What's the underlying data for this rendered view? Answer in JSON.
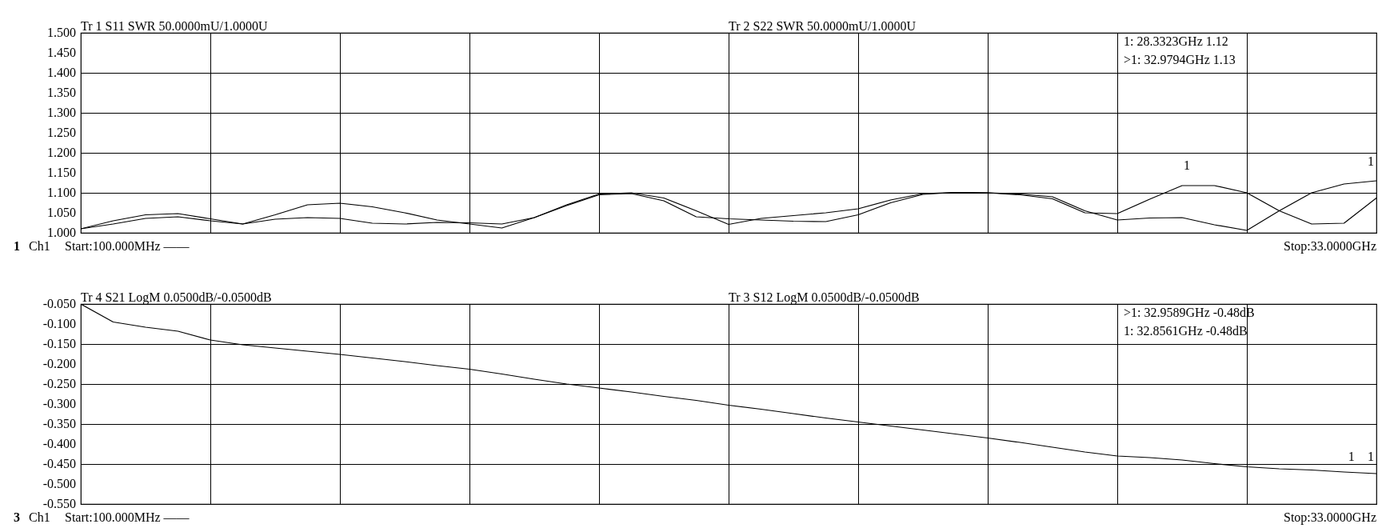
{
  "chart_data": [
    {
      "type": "line",
      "ylim": [
        1.0,
        1.5
      ],
      "categories": [
        null,
        null,
        null,
        null,
        null,
        null,
        null,
        null,
        null,
        null,
        null,
        null,
        null,
        null,
        null,
        null,
        null,
        null,
        null,
        null,
        null,
        null,
        null,
        null,
        null,
        null,
        null,
        null,
        null,
        null,
        null,
        null,
        null,
        null,
        null,
        null,
        null,
        null,
        null,
        null,
        null
      ],
      "yticks": [
        {
          "value": 1.0,
          "label": "1.000"
        },
        {
          "value": 1.05,
          "label": "1.050"
        },
        {
          "value": 1.1,
          "label": "1.100"
        },
        {
          "value": 1.15,
          "label": "1.150"
        },
        {
          "value": 1.2,
          "label": "1.200"
        },
        {
          "value": 1.25,
          "label": "1.250"
        },
        {
          "value": 1.3,
          "label": "1.300"
        },
        {
          "value": 1.35,
          "label": "1.350"
        },
        {
          "value": 1.4,
          "label": "1.400"
        },
        {
          "value": 1.45,
          "label": "1.450"
        },
        {
          "value": 1.5,
          "label": "1.500"
        }
      ],
      "grid": true,
      "tick_labels": "y",
      "series": [
        {
          "color": "#000000",
          "values": [
            1.01,
            1.03,
            1.045,
            1.048,
            1.035,
            1.022,
            1.045,
            1.07,
            1.074,
            1.065,
            1.05,
            1.032,
            1.022,
            1.012,
            1.038,
            1.07,
            1.097,
            1.1,
            1.087,
            1.055,
            1.021,
            1.036,
            1.043,
            1.05,
            1.06,
            1.082,
            1.098,
            1.101,
            1.1,
            1.095,
            1.085,
            1.05,
            1.048,
            1.084,
            1.118,
            1.118,
            1.1,
            1.055,
            1.022,
            1.024,
            1.087
          ]
        },
        {
          "color": "#000000",
          "values": [
            1.01,
            1.022,
            1.036,
            1.04,
            1.03,
            1.022,
            1.034,
            1.038,
            1.036,
            1.024,
            1.022,
            1.026,
            1.025,
            1.022,
            1.038,
            1.068,
            1.095,
            1.098,
            1.08,
            1.04,
            1.035,
            1.032,
            1.029,
            1.028,
            1.045,
            1.075,
            1.096,
            1.101,
            1.1,
            1.097,
            1.09,
            1.055,
            1.032,
            1.037,
            1.038,
            1.02,
            1.006,
            1.055,
            1.1,
            1.122,
            1.13
          ]
        }
      ],
      "annotations": [
        "Tr 1  S11 SWR 50.0000mU/1.0000U",
        "Tr 2  S22 SWR 50.0000mU/1.0000U",
        "1:   28.3323GHz 1.12",
        ">1:   32.9794GHz 1.13",
        "1",
        "Ch1",
        "Start:100.000MHz ——",
        "Stop:33.0000GHz",
        {
          "text": "1",
          "y": 1.12
        },
        {
          "text": "1",
          "y": 1.13
        }
      ]
    },
    {
      "type": "line",
      "ylim": [
        -0.55,
        -0.05
      ],
      "categories": [
        null,
        null,
        null,
        null,
        null,
        null,
        null,
        null,
        null,
        null,
        null,
        null,
        null,
        null,
        null,
        null,
        null,
        null,
        null,
        null,
        null,
        null,
        null,
        null,
        null,
        null,
        null,
        null,
        null,
        null,
        null,
        null,
        null,
        null,
        null,
        null,
        null,
        null,
        null,
        null,
        null
      ],
      "yticks": [
        {
          "value": -0.55,
          "label": "-0.550"
        },
        {
          "value": -0.5,
          "label": "-0.500"
        },
        {
          "value": -0.45,
          "label": "-0.450"
        },
        {
          "value": -0.4,
          "label": "-0.400"
        },
        {
          "value": -0.35,
          "label": "-0.350"
        },
        {
          "value": -0.3,
          "label": "-0.300"
        },
        {
          "value": -0.25,
          "label": "-0.250"
        },
        {
          "value": -0.2,
          "label": "-0.200"
        },
        {
          "value": -0.15,
          "label": "-0.150"
        },
        {
          "value": -0.1,
          "label": "-0.100"
        },
        {
          "value": -0.05,
          "label": "-0.050"
        }
      ],
      "grid": true,
      "tick_labels": "y",
      "series": [
        {
          "color": "#000000",
          "values": [
            -0.05,
            -0.095,
            -0.108,
            -0.118,
            -0.14,
            -0.152,
            -0.16,
            -0.168,
            -0.176,
            -0.185,
            -0.194,
            -0.204,
            -0.213,
            -0.225,
            -0.238,
            -0.25,
            -0.26,
            -0.27,
            -0.281,
            -0.291,
            -0.303,
            -0.313,
            -0.324,
            -0.335,
            -0.345,
            -0.355,
            -0.365,
            -0.375,
            -0.385,
            -0.396,
            -0.408,
            -0.42,
            -0.43,
            -0.434,
            -0.44,
            -0.449,
            -0.457,
            -0.462,
            -0.465,
            -0.47,
            -0.474
          ]
        }
      ],
      "annotations": [
        "Tr 4  S21 LogM 0.0500dB/-0.0500dB",
        "Tr 3  S12 LogM 0.0500dB/-0.0500dB",
        ">1:   32.9589GHz -0.48dB",
        "1:   32.8561GHz -0.48dB",
        "3",
        "Ch1",
        "Start:100.000MHz ——",
        "Stop:33.0000GHz",
        {
          "text": "1",
          "y": -0.48
        },
        {
          "text": "1",
          "y": -0.48
        }
      ]
    }
  ]
}
